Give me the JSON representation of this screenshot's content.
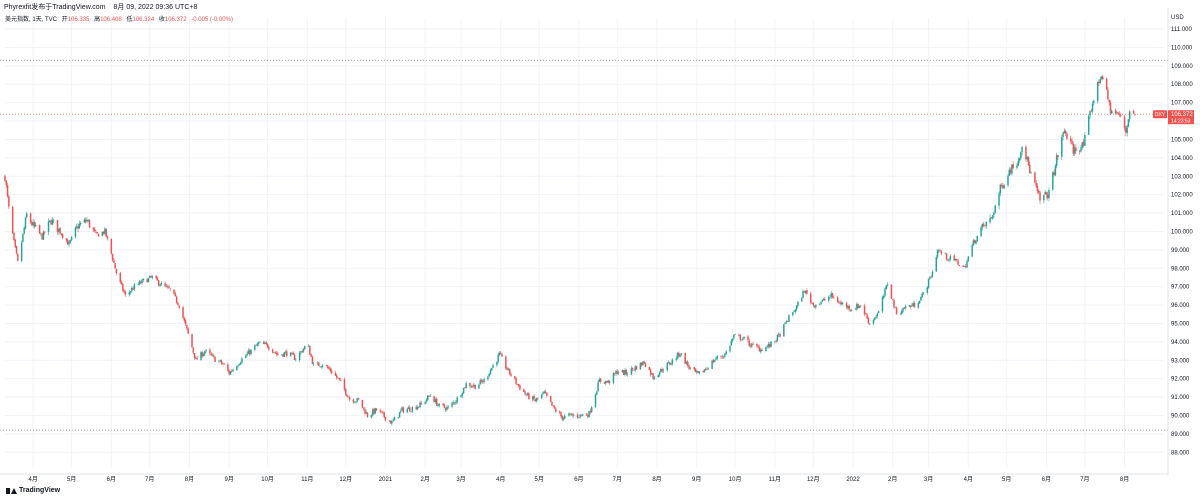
{
  "header": {
    "author_line": "Phyrexfit发布于TradingView.com",
    "date_line": "8月 09, 2022 09:36 UTC+8",
    "symbol": "美元指数, 1天, TVC",
    "open_label": "开",
    "open_value": "106.335",
    "high_label": "高",
    "high_value": "106.408",
    "low_label": "低",
    "low_value": "106.324",
    "close_label": "收",
    "close_value": "106.372",
    "change_value": "-0.005 (-0.00%)"
  },
  "footer": {
    "logo_text": "TradingView"
  },
  "colors": {
    "up": "#26a69a",
    "down": "#ef5350",
    "grid": "#f0f3fa",
    "text": "#131722",
    "dotted": "#9598a1"
  },
  "chart_data": {
    "type": "candlestick",
    "title": "",
    "currency": "USD",
    "ylim": [
      87.2,
      111.6
    ],
    "y_ticks": [
      88,
      89,
      90,
      91,
      92,
      93,
      94,
      95,
      96,
      97,
      98,
      99,
      100,
      101,
      102,
      103,
      104,
      105,
      106,
      107,
      108,
      109,
      110,
      111
    ],
    "y_tick_labels": [
      "88.000",
      "89.000",
      "90.000",
      "91.000",
      "92.000",
      "93.000",
      "94.000",
      "95.000",
      "96.000",
      "97.000",
      "98.000",
      "99.000",
      "100.000",
      "101.000",
      "102.000",
      "103.000",
      "104.000",
      "105.000",
      "106.000",
      "107.000",
      "108.000",
      "109.000",
      "110.000",
      "111.000"
    ],
    "x_tick_labels": [
      "4月",
      "5月",
      "6月",
      "7月",
      "8月",
      "9月",
      "10月",
      "11月",
      "12月",
      "2021",
      "2月",
      "3月",
      "4月",
      "5月",
      "6月",
      "7月",
      "8月",
      "9月",
      "10月",
      "11月",
      "12月",
      "2022",
      "2月",
      "3月",
      "4月",
      "5月",
      "6月",
      "7月",
      "8月"
    ],
    "x_range": [
      "2020-03-10",
      "2022-08-31"
    ],
    "x_tick_dates": [
      "2020-04-01",
      "2020-05-01",
      "2020-06-01",
      "2020-07-01",
      "2020-08-01",
      "2020-09-01",
      "2020-10-01",
      "2020-11-01",
      "2020-12-01",
      "2021-01-01",
      "2021-02-01",
      "2021-03-01",
      "2021-04-01",
      "2021-05-01",
      "2021-06-01",
      "2021-07-01",
      "2021-08-01",
      "2021-09-01",
      "2021-10-01",
      "2021-11-01",
      "2021-12-01",
      "2022-01-01",
      "2022-02-01",
      "2022-03-01",
      "2022-04-01",
      "2022-05-01",
      "2022-06-01",
      "2022-07-01",
      "2022-08-01"
    ],
    "price_series": [
      [
        "2020-03-10",
        103.0
      ],
      [
        "2020-03-13",
        101.2
      ],
      [
        "2020-03-17",
        99.4
      ],
      [
        "2020-03-20",
        98.3
      ],
      [
        "2020-03-24",
        99.8
      ],
      [
        "2020-03-27",
        100.9
      ],
      [
        "2020-04-01",
        100.3
      ],
      [
        "2020-04-08",
        99.7
      ],
      [
        "2020-04-15",
        100.6
      ],
      [
        "2020-04-22",
        100.0
      ],
      [
        "2020-04-29",
        99.3
      ],
      [
        "2020-05-06",
        100.3
      ],
      [
        "2020-05-13",
        100.6
      ],
      [
        "2020-05-20",
        99.8
      ],
      [
        "2020-05-27",
        100.0
      ],
      [
        "2020-06-01",
        98.8
      ],
      [
        "2020-06-06",
        97.5
      ],
      [
        "2020-06-12",
        96.5
      ],
      [
        "2020-06-19",
        97.0
      ],
      [
        "2020-06-26",
        97.3
      ],
      [
        "2020-07-03",
        97.5
      ],
      [
        "2020-07-10",
        97.1
      ],
      [
        "2020-07-17",
        96.8
      ],
      [
        "2020-07-24",
        96.0
      ],
      [
        "2020-07-31",
        94.4
      ],
      [
        "2020-08-06",
        93.0
      ],
      [
        "2020-08-13",
        93.5
      ],
      [
        "2020-08-20",
        93.1
      ],
      [
        "2020-08-27",
        92.8
      ],
      [
        "2020-09-01",
        92.3
      ],
      [
        "2020-09-10",
        93.0
      ],
      [
        "2020-09-24",
        93.9
      ],
      [
        "2020-10-01",
        93.8
      ],
      [
        "2020-10-09",
        93.3
      ],
      [
        "2020-10-16",
        93.4
      ],
      [
        "2020-10-23",
        93.1
      ],
      [
        "2020-11-01",
        93.9
      ],
      [
        "2020-11-06",
        92.7
      ],
      [
        "2020-11-13",
        92.8
      ],
      [
        "2020-11-20",
        92.4
      ],
      [
        "2020-11-27",
        91.8
      ],
      [
        "2020-12-04",
        90.9
      ],
      [
        "2020-12-11",
        90.8
      ],
      [
        "2020-12-18",
        90.0
      ],
      [
        "2020-12-25",
        90.3
      ],
      [
        "2021-01-06",
        89.6
      ],
      [
        "2021-01-14",
        90.3
      ],
      [
        "2021-01-22",
        90.4
      ],
      [
        "2021-01-29",
        90.6
      ],
      [
        "2021-02-05",
        91.1
      ],
      [
        "2021-02-12",
        90.5
      ],
      [
        "2021-02-19",
        90.4
      ],
      [
        "2021-02-26",
        90.9
      ],
      [
        "2021-03-05",
        91.7
      ],
      [
        "2021-03-12",
        91.6
      ],
      [
        "2021-03-19",
        91.9
      ],
      [
        "2021-03-31",
        93.3
      ],
      [
        "2021-04-07",
        92.4
      ],
      [
        "2021-04-14",
        91.7
      ],
      [
        "2021-04-21",
        91.1
      ],
      [
        "2021-04-28",
        90.8
      ],
      [
        "2021-05-05",
        91.2
      ],
      [
        "2021-05-12",
        90.4
      ],
      [
        "2021-05-19",
        89.9
      ],
      [
        "2021-05-26",
        90.0
      ],
      [
        "2021-06-02",
        90.0
      ],
      [
        "2021-06-09",
        90.1
      ],
      [
        "2021-06-17",
        91.9
      ],
      [
        "2021-06-24",
        91.8
      ],
      [
        "2021-07-01",
        92.4
      ],
      [
        "2021-07-08",
        92.3
      ],
      [
        "2021-07-15",
        92.6
      ],
      [
        "2021-07-22",
        92.9
      ],
      [
        "2021-07-29",
        92.1
      ],
      [
        "2021-08-05",
        92.5
      ],
      [
        "2021-08-12",
        92.9
      ],
      [
        "2021-08-19",
        93.4
      ],
      [
        "2021-08-26",
        92.6
      ],
      [
        "2021-09-02",
        92.2
      ],
      [
        "2021-09-09",
        92.6
      ],
      [
        "2021-09-16",
        93.1
      ],
      [
        "2021-09-23",
        93.3
      ],
      [
        "2021-09-30",
        94.3
      ],
      [
        "2021-10-07",
        94.2
      ],
      [
        "2021-10-14",
        93.8
      ],
      [
        "2021-10-21",
        93.6
      ],
      [
        "2021-10-28",
        93.8
      ],
      [
        "2021-11-04",
        94.3
      ],
      [
        "2021-11-11",
        95.2
      ],
      [
        "2021-11-18",
        95.9
      ],
      [
        "2021-11-24",
        96.8
      ],
      [
        "2021-12-01",
        96.0
      ],
      [
        "2021-12-08",
        96.2
      ],
      [
        "2021-12-15",
        96.5
      ],
      [
        "2021-12-22",
        96.1
      ],
      [
        "2021-12-31",
        95.8
      ],
      [
        "2022-01-07",
        96.0
      ],
      [
        "2022-01-14",
        95.0
      ],
      [
        "2022-01-21",
        95.6
      ],
      [
        "2022-01-28",
        97.2
      ],
      [
        "2022-02-04",
        95.5
      ],
      [
        "2022-02-11",
        95.9
      ],
      [
        "2022-02-18",
        96.0
      ],
      [
        "2022-02-25",
        96.6
      ],
      [
        "2022-03-04",
        97.8
      ],
      [
        "2022-03-08",
        99.0
      ],
      [
        "2022-03-15",
        98.6
      ],
      [
        "2022-03-22",
        98.4
      ],
      [
        "2022-03-29",
        98.0
      ],
      [
        "2022-04-05",
        99.4
      ],
      [
        "2022-04-12",
        100.2
      ],
      [
        "2022-04-19",
        100.7
      ],
      [
        "2022-04-26",
        102.3
      ],
      [
        "2022-05-03",
        103.3
      ],
      [
        "2022-05-10",
        103.9
      ],
      [
        "2022-05-13",
        104.8
      ],
      [
        "2022-05-20",
        103.1
      ],
      [
        "2022-05-27",
        101.7
      ],
      [
        "2022-06-03",
        102.1
      ],
      [
        "2022-06-10",
        104.2
      ],
      [
        "2022-06-15",
        105.5
      ],
      [
        "2022-06-22",
        104.4
      ],
      [
        "2022-06-30",
        104.7
      ],
      [
        "2022-07-07",
        107.0
      ],
      [
        "2022-07-14",
        108.6
      ],
      [
        "2022-07-21",
        106.6
      ],
      [
        "2022-07-28",
        106.3
      ],
      [
        "2022-08-02",
        105.4
      ],
      [
        "2022-08-05",
        106.6
      ],
      [
        "2022-08-09",
        106.372
      ]
    ],
    "last_price": 106.372,
    "last_price_label": "106.372",
    "last_price_tag": "DXY",
    "countdown_label": "14:23:53",
    "upper_dotted_level": 109.3,
    "lower_dotted_level": 89.2
  }
}
